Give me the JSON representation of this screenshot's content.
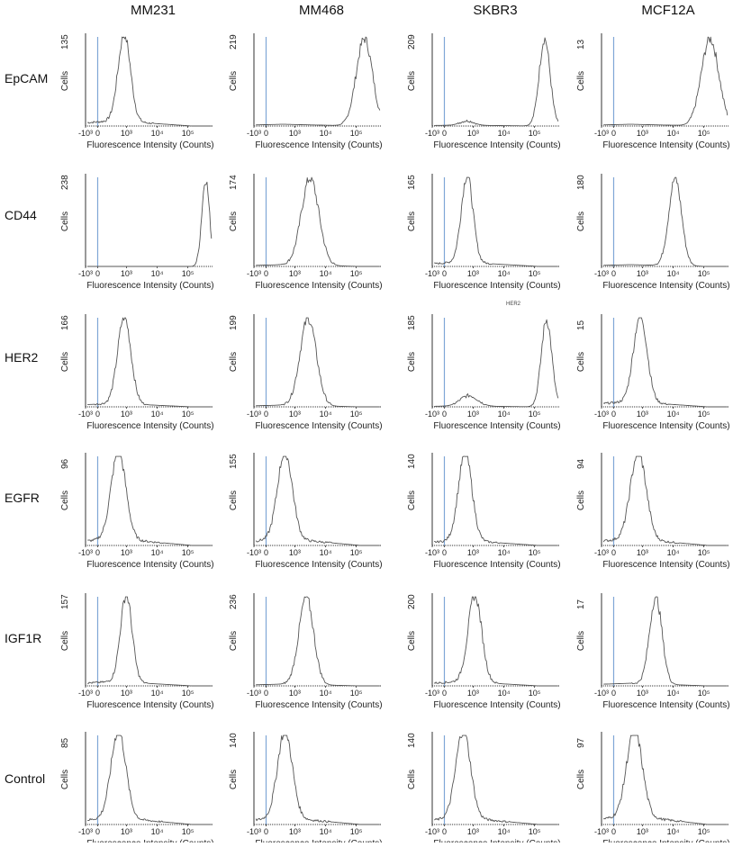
{
  "columns": [
    "MM231",
    "MM468",
    "SKBR3",
    "MCF12A"
  ],
  "rows": [
    "EpCAM",
    "CD44",
    "HER2",
    "EGFR",
    "IGF1R",
    "Control"
  ],
  "axis_text": {
    "ylabel": "Cells",
    "xlabel": "Fluorescence Intensity (Counts)",
    "tick_labels": [
      "-10³",
      "0",
      "10³",
      "10⁴",
      "10⁵"
    ]
  },
  "colors": {
    "histogram": "#555555",
    "gate": "#7fa6d6",
    "axis": "#333333"
  },
  "chart_data": [
    {
      "type": "area",
      "row": "EpCAM",
      "column": "MM231",
      "ylabel": "Cells",
      "xlabel": "Fluorescence Intensity (Counts)",
      "ylim": [
        0,
        135
      ],
      "y_max_label": "135",
      "gate": "0",
      "peaks": [
        {
          "x": 1.0,
          "h": 1.0,
          "w": 0.32
        }
      ],
      "plateau": 0.06
    },
    {
      "type": "area",
      "row": "EpCAM",
      "column": "MM468",
      "ylabel": "Cells",
      "xlabel": "Fluorescence Intensity (Counts)",
      "ylim": [
        0,
        219
      ],
      "y_max_label": "219",
      "gate": "0",
      "peaks": [
        {
          "x": 4.7,
          "h": 1.0,
          "w": 0.42
        }
      ],
      "plateau": 0.02
    },
    {
      "type": "area",
      "row": "EpCAM",
      "column": "SKBR3",
      "ylabel": "Cells",
      "xlabel": "Fluorescence Intensity (Counts)",
      "ylim": [
        0,
        209
      ],
      "y_max_label": "209",
      "gate": "0",
      "peaks": [
        {
          "x": 0.8,
          "h": 0.05,
          "w": 0.35
        },
        {
          "x": 4.8,
          "h": 1.0,
          "w": 0.28
        }
      ],
      "plateau": 0.01
    },
    {
      "type": "area",
      "row": "EpCAM",
      "column": "MCF12A",
      "ylabel": "Cells",
      "xlabel": "Fluorescence Intensity (Counts)",
      "ylim": [
        0,
        13
      ],
      "y_max_label": "13",
      "gate": "0",
      "peaks": [
        {
          "x": 4.6,
          "h": 1.0,
          "w": 0.45
        }
      ],
      "plateau": 0.02
    },
    {
      "type": "area",
      "row": "CD44",
      "column": "MM231",
      "ylabel": "Cells",
      "xlabel": "Fluorescence Intensity (Counts)",
      "ylim": [
        0,
        238
      ],
      "y_max_label": "238",
      "gate": "0",
      "peaks": [
        {
          "x": 5.2,
          "h": 1.0,
          "w": 0.2
        }
      ],
      "plateau": 0.0
    },
    {
      "type": "area",
      "row": "CD44",
      "column": "MM468",
      "ylabel": "Cells",
      "xlabel": "Fluorescence Intensity (Counts)",
      "ylim": [
        0,
        174
      ],
      "y_max_label": "174",
      "gate": "0",
      "peaks": [
        {
          "x": 1.9,
          "h": 1.0,
          "w": 0.45
        }
      ],
      "plateau": 0.02
    },
    {
      "type": "area",
      "row": "CD44",
      "column": "SKBR3",
      "ylabel": "Cells",
      "xlabel": "Fluorescence Intensity (Counts)",
      "ylim": [
        0,
        165
      ],
      "y_max_label": "165",
      "gate": "0",
      "peaks": [
        {
          "x": 0.8,
          "h": 1.0,
          "w": 0.3
        }
      ],
      "plateau": 0.05
    },
    {
      "type": "area",
      "row": "CD44",
      "column": "MCF12A",
      "ylabel": "Cells",
      "xlabel": "Fluorescence Intensity (Counts)",
      "ylim": [
        0,
        180
      ],
      "y_max_label": "180",
      "gate": "0",
      "peaks": [
        {
          "x": 2.8,
          "h": 1.0,
          "w": 0.33
        }
      ],
      "plateau": 0.02
    },
    {
      "type": "area",
      "row": "HER2",
      "column": "MM231",
      "ylabel": "Cells",
      "xlabel": "Fluorescence Intensity (Counts)",
      "ylim": [
        0,
        166
      ],
      "y_max_label": "166",
      "gate": "0",
      "peaks": [
        {
          "x": 1.0,
          "h": 1.0,
          "w": 0.34
        }
      ],
      "plateau": 0.04
    },
    {
      "type": "area",
      "row": "HER2",
      "column": "MM468",
      "ylabel": "Cells",
      "xlabel": "Fluorescence Intensity (Counts)",
      "ylim": [
        0,
        199
      ],
      "y_max_label": "199",
      "gate": "0",
      "peaks": [
        {
          "x": 1.8,
          "h": 1.0,
          "w": 0.42
        }
      ],
      "plateau": 0.02
    },
    {
      "type": "area",
      "row": "HER2",
      "column": "SKBR3",
      "ylabel": "Cells",
      "xlabel": "Fluorescence Intensity (Counts)",
      "ylim": [
        0,
        185
      ],
      "y_max_label": "185",
      "gate": "0",
      "peaks": [
        {
          "x": 0.9,
          "h": 0.12,
          "w": 0.45
        },
        {
          "x": 4.9,
          "h": 1.0,
          "w": 0.27
        }
      ],
      "plateau": 0.01,
      "note": "HER2"
    },
    {
      "type": "area",
      "row": "HER2",
      "column": "MCF12A",
      "ylabel": "Cells",
      "xlabel": "Fluorescence Intensity (Counts)",
      "ylim": [
        0,
        15
      ],
      "y_max_label": "15",
      "gate": "0",
      "peaks": [
        {
          "x": 1.0,
          "h": 1.0,
          "w": 0.35
        }
      ],
      "plateau": 0.06
    },
    {
      "type": "area",
      "row": "EGFR",
      "column": "MM231",
      "ylabel": "Cells",
      "xlabel": "Fluorescence Intensity (Counts)",
      "ylim": [
        0,
        96
      ],
      "y_max_label": "96",
      "gate": "0",
      "peaks": [
        {
          "x": 0.7,
          "h": 1.0,
          "w": 0.38
        }
      ],
      "plateau": 0.08
    },
    {
      "type": "area",
      "row": "EGFR",
      "column": "MM468",
      "ylabel": "Cells",
      "xlabel": "Fluorescence Intensity (Counts)",
      "ylim": [
        0,
        155
      ],
      "y_max_label": "155",
      "gate": "0",
      "peaks": [
        {
          "x": 0.6,
          "h": 1.0,
          "w": 0.38
        }
      ],
      "plateau": 0.08
    },
    {
      "type": "area",
      "row": "EGFR",
      "column": "SKBR3",
      "ylabel": "Cells",
      "xlabel": "Fluorescence Intensity (Counts)",
      "ylim": [
        0,
        140
      ],
      "y_max_label": "140",
      "gate": "0",
      "peaks": [
        {
          "x": 0.7,
          "h": 1.0,
          "w": 0.35
        }
      ],
      "plateau": 0.06
    },
    {
      "type": "area",
      "row": "EGFR",
      "column": "MCF12A",
      "ylabel": "Cells",
      "xlabel": "Fluorescence Intensity (Counts)",
      "ylim": [
        0,
        94
      ],
      "y_max_label": "94",
      "gate": "0",
      "peaks": [
        {
          "x": 0.9,
          "h": 1.0,
          "w": 0.4
        }
      ],
      "plateau": 0.08
    },
    {
      "type": "area",
      "row": "IGF1R",
      "column": "MM231",
      "ylabel": "Cells",
      "xlabel": "Fluorescence Intensity (Counts)",
      "ylim": [
        0,
        157
      ],
      "y_max_label": "157",
      "gate": "0",
      "peaks": [
        {
          "x": 1.1,
          "h": 1.0,
          "w": 0.3
        }
      ],
      "plateau": 0.05
    },
    {
      "type": "area",
      "row": "IGF1R",
      "column": "MM468",
      "ylabel": "Cells",
      "xlabel": "Fluorescence Intensity (Counts)",
      "ylim": [
        0,
        236
      ],
      "y_max_label": "236",
      "gate": "0",
      "peaks": [
        {
          "x": 1.7,
          "h": 1.0,
          "w": 0.38
        }
      ],
      "plateau": 0.02
    },
    {
      "type": "area",
      "row": "IGF1R",
      "column": "SKBR3",
      "ylabel": "Cells",
      "xlabel": "Fluorescence Intensity (Counts)",
      "ylim": [
        0,
        200
      ],
      "y_max_label": "200",
      "gate": "0",
      "peaks": [
        {
          "x": 1.2,
          "h": 1.0,
          "w": 0.35
        }
      ],
      "plateau": 0.05
    },
    {
      "type": "area",
      "row": "IGF1R",
      "column": "MCF12A",
      "ylabel": "Cells",
      "xlabel": "Fluorescence Intensity (Counts)",
      "ylim": [
        0,
        17
      ],
      "y_max_label": "17",
      "gate": "0",
      "peaks": [
        {
          "x": 1.8,
          "h": 1.0,
          "w": 0.32
        }
      ],
      "plateau": 0.03
    },
    {
      "type": "area",
      "row": "Control",
      "column": "MM231",
      "ylabel": "Cells",
      "xlabel": "Fluorescence Intensity (Counts)",
      "ylim": [
        0,
        85
      ],
      "y_max_label": "85",
      "gate": "0",
      "peaks": [
        {
          "x": 0.7,
          "h": 1.0,
          "w": 0.38
        }
      ],
      "plateau": 0.08
    },
    {
      "type": "area",
      "row": "Control",
      "column": "MM468",
      "ylabel": "Cells",
      "xlabel": "Fluorescence Intensity (Counts)",
      "ylim": [
        0,
        140
      ],
      "y_max_label": "140",
      "gate": "0",
      "peaks": [
        {
          "x": 0.6,
          "h": 1.0,
          "w": 0.38
        }
      ],
      "plateau": 0.08
    },
    {
      "type": "area",
      "row": "Control",
      "column": "SKBR3",
      "ylabel": "Cells",
      "xlabel": "Fluorescence Intensity (Counts)",
      "ylim": [
        0,
        140
      ],
      "y_max_label": "140",
      "gate": "0",
      "peaks": [
        {
          "x": 0.6,
          "h": 1.0,
          "w": 0.38
        }
      ],
      "plateau": 0.08
    },
    {
      "type": "area",
      "row": "Control",
      "column": "MCF12A",
      "ylabel": "Cells",
      "xlabel": "Fluorescence Intensity (Counts)",
      "ylim": [
        0,
        97
      ],
      "y_max_label": "97",
      "gate": "0",
      "peaks": [
        {
          "x": 0.7,
          "h": 1.0,
          "w": 0.4
        }
      ],
      "plateau": 0.1
    }
  ]
}
